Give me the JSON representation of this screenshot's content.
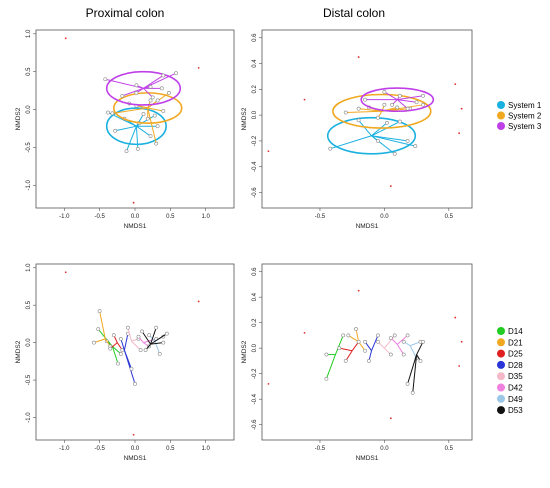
{
  "titles": {
    "left": "Proximal colon",
    "right": "Distal colon"
  },
  "legend_system": [
    {
      "label": "System 1",
      "color": "#1ab0e0"
    },
    {
      "label": "System 2",
      "color": "#f0a820"
    },
    {
      "label": "System 3",
      "color": "#c040e8"
    }
  ],
  "legend_day": [
    {
      "label": "D14",
      "color": "#22cc22"
    },
    {
      "label": "D21",
      "color": "#f0a820"
    },
    {
      "label": "D25",
      "color": "#e02020"
    },
    {
      "label": "D28",
      "color": "#2a35d8"
    },
    {
      "label": "D35",
      "color": "#f4b8c8"
    },
    {
      "label": "D42",
      "color": "#f080e0"
    },
    {
      "label": "D49",
      "color": "#9cc8e8"
    },
    {
      "label": "D53",
      "color": "#111111"
    }
  ],
  "chart_data": [
    {
      "type": "scatter",
      "title": "Proximal colon",
      "xlabel": "NMDS1",
      "ylabel": "NMDS2",
      "xlim": [
        -1.4,
        1.4
      ],
      "ylim": [
        -1.3,
        1.05
      ],
      "xticks": [
        "-1.0",
        "-0.5",
        "0.0",
        "0.5",
        "1.0"
      ],
      "yticks": [
        "1.0",
        "0.5",
        "0.0",
        "-0.5",
        "-1.0"
      ],
      "outliers": [
        [
          -0.98,
          0.94
        ],
        [
          0.9,
          0.55
        ],
        [
          -0.02,
          -1.23
        ]
      ],
      "groups": [
        {
          "name": "System 1",
          "color": "#1ab0e0",
          "centroid": [
            0.02,
            -0.22
          ],
          "ellipse": [
            0.42,
            0.24
          ],
          "points": [
            [
              -0.38,
              -0.04
            ],
            [
              -0.28,
              -0.28
            ],
            [
              -0.12,
              -0.55
            ],
            [
              0.04,
              -0.52
            ],
            [
              0.22,
              -0.35
            ],
            [
              0.32,
              -0.22
            ],
            [
              0.28,
              -0.08
            ],
            [
              0.12,
              -0.06
            ],
            [
              -0.15,
              -0.12
            ],
            [
              0.06,
              -0.18
            ]
          ]
        },
        {
          "name": "System 2",
          "color": "#f0a820",
          "centroid": [
            0.18,
            0.02
          ],
          "ellipse": [
            0.48,
            0.2
          ],
          "points": [
            [
              -0.32,
              -0.05
            ],
            [
              -0.08,
              0.08
            ],
            [
              0.32,
              0.12
            ],
            [
              0.48,
              0.22
            ],
            [
              0.18,
              -0.12
            ],
            [
              0.4,
              -0.02
            ],
            [
              0.3,
              -0.45
            ],
            [
              0.02,
              0.05
            ],
            [
              0.22,
              0.12
            ]
          ]
        },
        {
          "name": "System 3",
          "color": "#c040e8",
          "centroid": [
            0.12,
            0.28
          ],
          "ellipse": [
            0.52,
            0.22
          ],
          "points": [
            [
              -0.42,
              0.4
            ],
            [
              -0.18,
              0.18
            ],
            [
              0.02,
              0.32
            ],
            [
              0.22,
              0.3
            ],
            [
              0.38,
              0.28
            ],
            [
              0.25,
              0.16
            ],
            [
              0.4,
              0.45
            ],
            [
              0.58,
              0.48
            ],
            [
              0.02,
              0.22
            ]
          ]
        }
      ]
    },
    {
      "type": "scatter",
      "title": "Distal colon",
      "xlabel": "NMDS1",
      "ylabel": "NMDS2",
      "xlim": [
        -0.95,
        0.68
      ],
      "ylim": [
        -0.72,
        0.66
      ],
      "xticks": [
        "-0.5",
        "0.0",
        "0.5"
      ],
      "yticks": [
        "0.6",
        "0.4",
        "0.2",
        "0.0",
        "-0.2",
        "-0.4",
        "-0.6"
      ],
      "outliers": [
        [
          -0.9,
          -0.28
        ],
        [
          -0.62,
          0.12
        ],
        [
          -0.2,
          0.45
        ],
        [
          0.05,
          -0.55
        ],
        [
          0.55,
          0.24
        ],
        [
          0.58,
          -0.14
        ],
        [
          0.6,
          0.05
        ]
      ],
      "groups": [
        {
          "name": "System 1",
          "color": "#1ab0e0",
          "centroid": [
            -0.1,
            -0.16
          ],
          "ellipse": [
            0.34,
            0.14
          ],
          "points": [
            [
              -0.42,
              -0.26
            ],
            [
              -0.2,
              -0.04
            ],
            [
              0.02,
              -0.06
            ],
            [
              0.12,
              -0.05
            ],
            [
              0.18,
              -0.2
            ],
            [
              0.24,
              -0.24
            ],
            [
              0.08,
              -0.3
            ],
            [
              -0.05,
              -0.2
            ]
          ]
        },
        {
          "name": "System 2",
          "color": "#f0a820",
          "centroid": [
            -0.02,
            0.03
          ],
          "ellipse": [
            0.38,
            0.13
          ],
          "points": [
            [
              -0.3,
              0.02
            ],
            [
              -0.2,
              0.05
            ],
            [
              -0.12,
              0.06
            ],
            [
              0.0,
              0.08
            ],
            [
              0.1,
              0.06
            ],
            [
              0.2,
              0.05
            ],
            [
              0.3,
              0.08
            ],
            [
              -0.05,
              -0.02
            ]
          ]
        },
        {
          "name": "System 3",
          "color": "#c040e8",
          "centroid": [
            0.1,
            0.12
          ],
          "ellipse": [
            0.28,
            0.09
          ],
          "points": [
            [
              -0.15,
              0.12
            ],
            [
              0.0,
              0.18
            ],
            [
              0.12,
              0.15
            ],
            [
              0.25,
              0.1
            ],
            [
              0.3,
              0.15
            ],
            [
              0.18,
              0.05
            ],
            [
              0.06,
              0.08
            ]
          ]
        }
      ]
    },
    {
      "type": "scatter",
      "xlabel": "NMDS1",
      "ylabel": "NMDS2",
      "xlim": [
        -1.4,
        1.4
      ],
      "ylim": [
        -1.3,
        1.05
      ],
      "xticks": [
        "-1.0",
        "-0.5",
        "0.0",
        "0.5",
        "1.0"
      ],
      "yticks": [
        "1.0",
        "0.5",
        "0.0",
        "-0.5",
        "-1.0"
      ],
      "outliers": [
        [
          -0.98,
          0.94
        ],
        [
          0.9,
          0.55
        ],
        [
          -0.02,
          -1.23
        ]
      ],
      "groups": [
        {
          "name": "D14",
          "color": "#22cc22",
          "centroid": [
            -0.32,
            -0.05
          ],
          "points": [
            [
              -0.52,
              0.18
            ],
            [
              -0.4,
              0.02
            ],
            [
              -0.24,
              -0.28
            ],
            [
              -0.2,
              -0.15
            ]
          ]
        },
        {
          "name": "D21",
          "color": "#f0a820",
          "centroid": [
            -0.42,
            0.05
          ],
          "points": [
            [
              -0.5,
              0.42
            ],
            [
              -0.35,
              -0.05
            ],
            [
              -0.58,
              0.0
            ]
          ]
        },
        {
          "name": "D25",
          "color": "#e02020",
          "centroid": [
            -0.25,
            0.0
          ],
          "points": [
            [
              -0.3,
              0.1
            ],
            [
              -0.18,
              -0.1
            ],
            [
              -0.35,
              -0.08
            ]
          ]
        },
        {
          "name": "D28",
          "color": "#2a35d8",
          "centroid": [
            -0.15,
            -0.1
          ],
          "points": [
            [
              -0.1,
              0.12
            ],
            [
              -0.05,
              -0.35
            ],
            [
              0.0,
              -0.55
            ],
            [
              -0.2,
              0.05
            ]
          ]
        },
        {
          "name": "D35",
          "color": "#f4b8c8",
          "centroid": [
            -0.05,
            0.02
          ],
          "points": [
            [
              -0.1,
              0.2
            ],
            [
              0.05,
              0.05
            ],
            [
              0.08,
              -0.1
            ]
          ]
        },
        {
          "name": "D42",
          "color": "#f080e0",
          "centroid": [
            0.12,
            0.0
          ],
          "points": [
            [
              0.05,
              0.08
            ],
            [
              0.3,
              0.05
            ],
            [
              0.2,
              -0.05
            ]
          ]
        },
        {
          "name": "D49",
          "color": "#9cc8e8",
          "centroid": [
            0.28,
            0.02
          ],
          "points": [
            [
              0.2,
              0.1
            ],
            [
              0.4,
              0.08
            ],
            [
              0.35,
              -0.15
            ]
          ]
        },
        {
          "name": "D53",
          "color": "#111111",
          "centroid": [
            0.22,
            -0.02
          ],
          "points": [
            [
              0.1,
              0.15
            ],
            [
              0.3,
              0.2
            ],
            [
              0.45,
              0.12
            ],
            [
              0.15,
              -0.1
            ],
            [
              0.4,
              0.0
            ]
          ]
        }
      ]
    },
    {
      "type": "scatter",
      "xlabel": "NMDS1",
      "ylabel": "NMDS2",
      "xlim": [
        -0.95,
        0.68
      ],
      "ylim": [
        -0.72,
        0.66
      ],
      "xticks": [
        "-0.5",
        "0.0",
        "0.5"
      ],
      "yticks": [
        "0.6",
        "0.4",
        "0.2",
        "0.0",
        "-0.2",
        "-0.4",
        "-0.6"
      ],
      "outliers": [
        [
          -0.9,
          -0.28
        ],
        [
          -0.62,
          0.12
        ],
        [
          -0.2,
          0.45
        ],
        [
          0.05,
          -0.55
        ],
        [
          0.55,
          0.24
        ],
        [
          0.58,
          -0.14
        ],
        [
          0.6,
          0.05
        ]
      ],
      "groups": [
        {
          "name": "D14",
          "color": "#22cc22",
          "centroid": [
            -0.38,
            -0.05
          ],
          "points": [
            [
              -0.45,
              -0.24
            ],
            [
              -0.32,
              0.1
            ],
            [
              -0.45,
              -0.05
            ]
          ]
        },
        {
          "name": "D21",
          "color": "#f0a820",
          "centroid": [
            -0.2,
            0.05
          ],
          "points": [
            [
              -0.28,
              0.1
            ],
            [
              -0.15,
              -0.02
            ],
            [
              -0.22,
              0.15
            ]
          ]
        },
        {
          "name": "D25",
          "color": "#e02020",
          "centroid": [
            -0.25,
            -0.02
          ],
          "points": [
            [
              -0.35,
              0.0
            ],
            [
              -0.2,
              0.05
            ],
            [
              -0.3,
              -0.1
            ]
          ]
        },
        {
          "name": "D28",
          "color": "#2a35d8",
          "centroid": [
            -0.1,
            -0.02
          ],
          "points": [
            [
              -0.05,
              0.1
            ],
            [
              -0.12,
              -0.1
            ],
            [
              -0.15,
              0.05
            ]
          ]
        },
        {
          "name": "D35",
          "color": "#f4b8c8",
          "centroid": [
            0.0,
            0.0
          ],
          "points": [
            [
              -0.05,
              0.05
            ],
            [
              0.08,
              0.1
            ],
            [
              0.05,
              -0.05
            ]
          ]
        },
        {
          "name": "D42",
          "color": "#f080e0",
          "centroid": [
            0.1,
            0.03
          ],
          "points": [
            [
              0.05,
              0.08
            ],
            [
              0.18,
              0.1
            ],
            [
              0.15,
              -0.05
            ]
          ]
        },
        {
          "name": "D49",
          "color": "#9cc8e8",
          "centroid": [
            0.2,
            0.02
          ],
          "points": [
            [
              0.15,
              0.05
            ],
            [
              0.28,
              0.05
            ],
            [
              0.25,
              -0.08
            ]
          ]
        },
        {
          "name": "D53",
          "color": "#111111",
          "centroid": [
            0.25,
            -0.05
          ],
          "points": [
            [
              0.18,
              -0.28
            ],
            [
              0.3,
              0.05
            ],
            [
              0.22,
              -0.35
            ],
            [
              0.28,
              -0.1
            ]
          ]
        }
      ]
    }
  ]
}
